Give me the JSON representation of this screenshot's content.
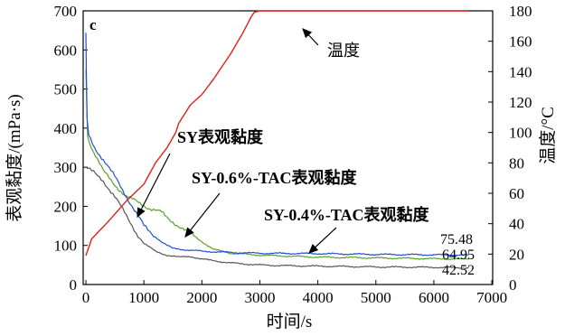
{
  "chart_data": {
    "type": "line",
    "panel_label": "c",
    "xlabel": "时间/s",
    "ylabel_left": "表观黏度/(mPa·s)",
    "ylabel_right": "温度/°C",
    "xlim": [
      0,
      7000
    ],
    "ylim_left": [
      0,
      700
    ],
    "ylim_right": [
      0,
      180
    ],
    "x_ticks": [
      "0",
      "1000",
      "2000",
      "3000",
      "4000",
      "5000",
      "6000",
      "7000"
    ],
    "y_left_ticks": [
      "0",
      "100",
      "200",
      "300",
      "400",
      "500",
      "600",
      "700"
    ],
    "y_right_ticks": [
      "0",
      "20",
      "40",
      "60",
      "80",
      "100",
      "120",
      "140",
      "160",
      "180"
    ],
    "grid": false,
    "legend": "none",
    "series": [
      {
        "name": "温度",
        "axis": "right",
        "color": "#e0201b",
        "points": [
          [
            0,
            19
          ],
          [
            100,
            30
          ],
          [
            400,
            42
          ],
          [
            700,
            55
          ],
          [
            1000,
            66
          ],
          [
            1200,
            80
          ],
          [
            1400,
            90
          ],
          [
            1550,
            100
          ],
          [
            1600,
            106
          ],
          [
            1800,
            118
          ],
          [
            2000,
            125
          ],
          [
            2200,
            135
          ],
          [
            2500,
            152
          ],
          [
            2700,
            165
          ],
          [
            2850,
            176
          ],
          [
            2900,
            179
          ],
          [
            3000,
            180
          ],
          [
            4000,
            180
          ],
          [
            5000,
            180
          ],
          [
            6000,
            180
          ],
          [
            6600,
            180
          ]
        ]
      },
      {
        "name": "SY表观黏度",
        "axis": "left",
        "color": "#555555",
        "points": [
          [
            0,
            300
          ],
          [
            100,
            290
          ],
          [
            300,
            265
          ],
          [
            500,
            225
          ],
          [
            700,
            175
          ],
          [
            900,
            125
          ],
          [
            1000,
            105
          ],
          [
            1200,
            85
          ],
          [
            1400,
            75
          ],
          [
            1600,
            70
          ],
          [
            1800,
            72
          ],
          [
            2000,
            65
          ],
          [
            2500,
            55
          ],
          [
            3000,
            50
          ],
          [
            3500,
            48
          ],
          [
            4000,
            47
          ],
          [
            5000,
            45
          ],
          [
            6000,
            44
          ],
          [
            6600,
            42.52
          ]
        ]
      },
      {
        "name": "SY-0.6%-TAC表观黏度",
        "axis": "left",
        "color": "#1f4fd6",
        "points": [
          [
            0,
            640
          ],
          [
            20,
            420
          ],
          [
            50,
            380
          ],
          [
            150,
            350
          ],
          [
            300,
            320
          ],
          [
            500,
            275
          ],
          [
            700,
            225
          ],
          [
            900,
            175
          ],
          [
            1000,
            150
          ],
          [
            1100,
            135
          ],
          [
            1300,
            110
          ],
          [
            1400,
            100
          ],
          [
            1500,
            92
          ],
          [
            2000,
            85
          ],
          [
            2500,
            82
          ],
          [
            3000,
            80
          ],
          [
            4000,
            79
          ],
          [
            5000,
            77
          ],
          [
            6000,
            76
          ],
          [
            6600,
            75.48
          ]
        ]
      },
      {
        "name": "SY-0.4%-TAC表观黏度",
        "axis": "left",
        "color": "#5aa02c",
        "points": [
          [
            0,
            550
          ],
          [
            30,
            380
          ],
          [
            100,
            350
          ],
          [
            300,
            290
          ],
          [
            500,
            255
          ],
          [
            700,
            225
          ],
          [
            900,
            210
          ],
          [
            1100,
            195
          ],
          [
            1300,
            185
          ],
          [
            1400,
            170
          ],
          [
            1600,
            150
          ],
          [
            1800,
            130
          ],
          [
            2000,
            110
          ],
          [
            2200,
            90
          ],
          [
            2500,
            80
          ],
          [
            3000,
            75
          ],
          [
            4000,
            70
          ],
          [
            5000,
            68
          ],
          [
            6000,
            66
          ],
          [
            6600,
            64.95
          ]
        ]
      }
    ],
    "annotations": [
      {
        "text": "温度",
        "target_series": "温度"
      },
      {
        "text": "SY表观黏度",
        "target_series": "SY表观黏度"
      },
      {
        "text": "SY-0.6%-TAC表观黏度",
        "target_series": "SY-0.6%-TAC表观黏度"
      },
      {
        "text": "SY-0.4%-TAC表观黏度",
        "target_series": "SY-0.4%-TAC表观黏度"
      }
    ],
    "end_labels": [
      "75.48",
      "64.95",
      "42.52"
    ]
  }
}
